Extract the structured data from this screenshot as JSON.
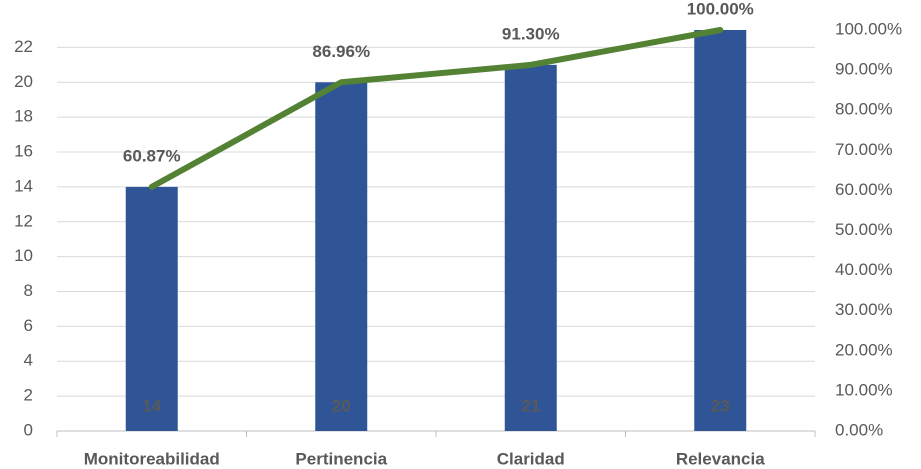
{
  "chart_data": {
    "type": "bar",
    "categories": [
      "Monitoreabilidad",
      "Pertinencia",
      "Claridad",
      "Relevancia"
    ],
    "series": [
      {
        "type": "bar",
        "color": "#2f5597",
        "values": [
          14,
          20,
          21,
          23
        ]
      },
      {
        "type": "line",
        "color": "#548235",
        "axis": "y2",
        "values": [
          60.87,
          86.96,
          91.3,
          100
        ],
        "value_labels": [
          "60.87%",
          "86.96%",
          "91.30%",
          "100.00%"
        ]
      }
    ],
    "ylim": [
      0,
      23
    ],
    "yticks": [
      0,
      2,
      4,
      6,
      8,
      10,
      12,
      14,
      16,
      18,
      20,
      22
    ],
    "y2lim": [
      0,
      100
    ],
    "y2ticks": [
      {
        "value": 0,
        "label": "0.00%"
      },
      {
        "value": 10,
        "label": "10.00%"
      },
      {
        "value": 20,
        "label": "20.00%"
      },
      {
        "value": 30,
        "label": "30.00%"
      },
      {
        "value": 40,
        "label": "40.00%"
      },
      {
        "value": 50,
        "label": "50.00%"
      },
      {
        "value": 60,
        "label": "60.00%"
      },
      {
        "value": 70,
        "label": "70.00%"
      },
      {
        "value": 80,
        "label": "80.00%"
      },
      {
        "value": 90,
        "label": "90.00%"
      },
      {
        "value": 100,
        "label": "100.00%"
      }
    ],
    "grid": true
  }
}
